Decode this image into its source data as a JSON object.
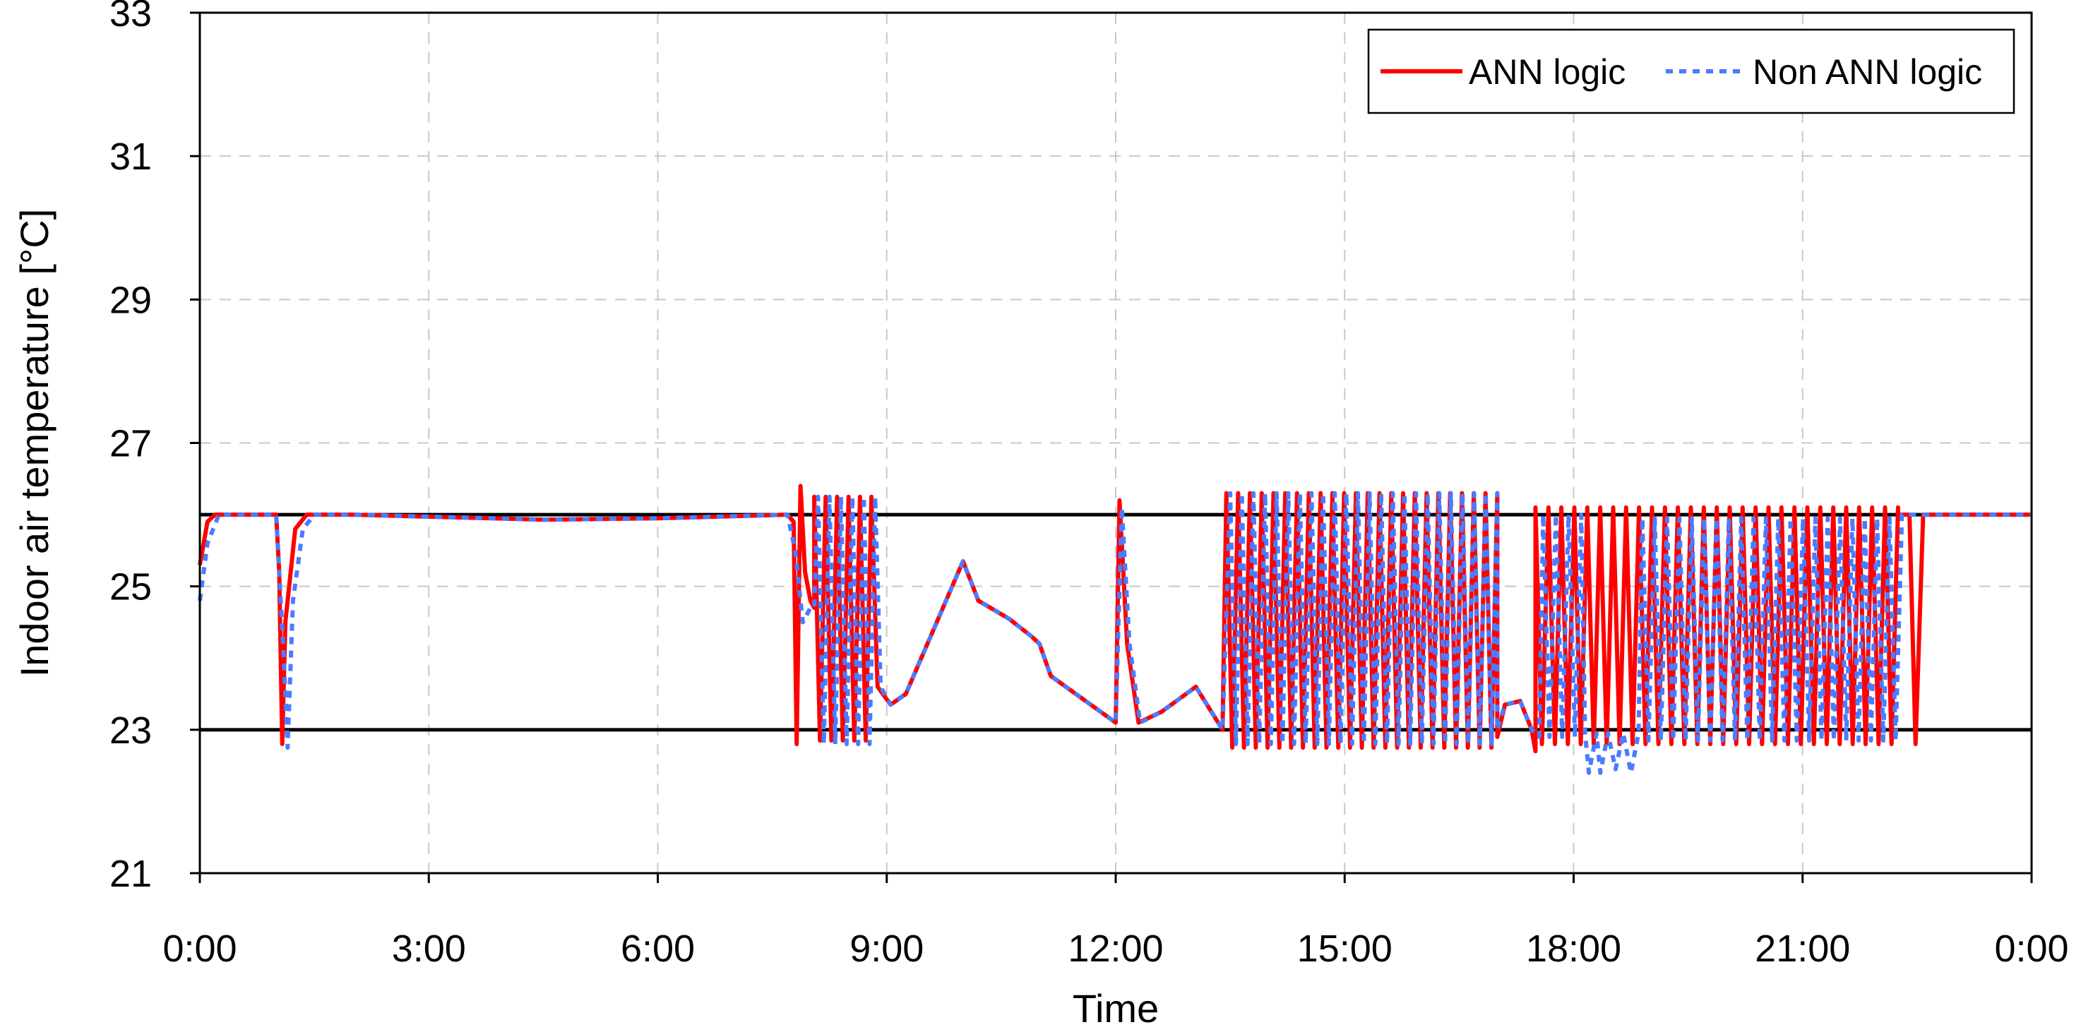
{
  "chart_data": {
    "type": "line",
    "title": "",
    "xlabel": "Time",
    "ylabel": "Indoor air temperature [°C]",
    "x_unit": "hours of day",
    "xlim": [
      0,
      24
    ],
    "ylim": [
      21,
      33
    ],
    "x_ticks": [
      0,
      3,
      6,
      9,
      12,
      15,
      18,
      21,
      24
    ],
    "x_tick_labels": [
      "0:00",
      "3:00",
      "6:00",
      "9:00",
      "12:00",
      "15:00",
      "18:00",
      "21:00",
      "0:00"
    ],
    "y_ticks": [
      21,
      23,
      25,
      27,
      29,
      31,
      33
    ],
    "y_tick_labels": [
      "21",
      "23",
      "25",
      "27",
      "29",
      "31",
      "33"
    ],
    "grid": true,
    "legend_position": "top-right",
    "reference_lines": [
      {
        "y": 26,
        "color": "#000000"
      },
      {
        "y": 23,
        "color": "#000000"
      }
    ],
    "series": [
      {
        "name": "ANN logic",
        "color": "#ff0000",
        "style": "solid",
        "segments": [
          {
            "type": "points",
            "points": [
              [
                0,
                25.3
              ],
              [
                0.1,
                25.9
              ],
              [
                0.2,
                26
              ],
              [
                1,
                26
              ],
              [
                1.04,
                25.2
              ],
              [
                1.08,
                22.8
              ],
              [
                1.12,
                24.5
              ],
              [
                1.25,
                25.8
              ],
              [
                1.4,
                26
              ],
              [
                2,
                26
              ],
              [
                4.5,
                25.93
              ],
              [
                6,
                25.95
              ],
              [
                7.7,
                26
              ],
              [
                7.78,
                25.9
              ],
              [
                7.82,
                22.8
              ],
              [
                7.87,
                26.4
              ],
              [
                7.93,
                25.2
              ],
              [
                8.0,
                24.8
              ],
              [
                8.05,
                24.7
              ]
            ]
          },
          {
            "type": "osc",
            "start": 8.05,
            "end": 8.8,
            "cycles": 5,
            "high": 26.25,
            "low": 22.85
          },
          {
            "type": "points",
            "points": [
              [
                8.8,
                26.2
              ],
              [
                8.88,
                23.6
              ],
              [
                9.05,
                23.35
              ],
              [
                9.25,
                23.5
              ],
              [
                10,
                25.35
              ],
              [
                10.2,
                24.8
              ],
              [
                10.6,
                24.55
              ],
              [
                10.9,
                24.3
              ],
              [
                11.0,
                24.2
              ],
              [
                11.15,
                23.75
              ],
              [
                12.0,
                23.1
              ],
              [
                12.05,
                26.2
              ],
              [
                12.15,
                24.2
              ],
              [
                12.3,
                23.1
              ],
              [
                12.6,
                23.25
              ],
              [
                13.05,
                23.6
              ],
              [
                13.4,
                23.0
              ]
            ]
          },
          {
            "type": "osc",
            "start": 13.45,
            "end": 17.0,
            "cycles": 23,
            "high": 26.3,
            "low": 22.75
          },
          {
            "type": "points",
            "points": [
              [
                17.0,
                22.9
              ],
              [
                17.1,
                23.35
              ],
              [
                17.3,
                23.4
              ],
              [
                17.45,
                23.0
              ],
              [
                17.5,
                22.7
              ]
            ]
          },
          {
            "type": "osc",
            "start": 17.5,
            "end": 22.25,
            "cycles": 28,
            "high": 26.1,
            "low": 22.8
          },
          {
            "type": "points",
            "points": [
              [
                22.25,
                26.0
              ],
              [
                22.4,
                26.0
              ],
              [
                22.48,
                22.8
              ],
              [
                22.58,
                26.0
              ],
              [
                22.8,
                26.0
              ],
              [
                24,
                26.0
              ]
            ]
          }
        ]
      },
      {
        "name": "Non ANN logic",
        "color": "#4a7cff",
        "style": "dotted",
        "segments": [
          {
            "type": "points",
            "points": [
              [
                0,
                24.8
              ],
              [
                0.1,
                25.6
              ],
              [
                0.25,
                26
              ],
              [
                1,
                26
              ],
              [
                1.1,
                24.0
              ],
              [
                1.15,
                22.75
              ],
              [
                1.22,
                24.8
              ],
              [
                1.35,
                25.8
              ],
              [
                1.5,
                26
              ],
              [
                2,
                26
              ],
              [
                4.5,
                25.93
              ],
              [
                6,
                25.95
              ],
              [
                7.7,
                26
              ],
              [
                7.8,
                25.5
              ],
              [
                7.9,
                24.5
              ],
              [
                8.0,
                24.7
              ],
              [
                8.05,
                24.7
              ]
            ]
          },
          {
            "type": "osc",
            "start": 8.1,
            "end": 8.85,
            "cycles": 5,
            "high": 26.25,
            "low": 22.8
          },
          {
            "type": "points",
            "points": [
              [
                8.85,
                26.2
              ],
              [
                8.92,
                23.6
              ],
              [
                9.05,
                23.35
              ],
              [
                9.25,
                23.5
              ],
              [
                10,
                25.35
              ],
              [
                10.2,
                24.8
              ],
              [
                10.6,
                24.55
              ],
              [
                10.9,
                24.3
              ],
              [
                11.0,
                24.2
              ],
              [
                11.15,
                23.75
              ],
              [
                12.0,
                23.1
              ],
              [
                12.08,
                26.1
              ],
              [
                12.18,
                24.2
              ],
              [
                12.32,
                23.1
              ],
              [
                12.6,
                23.25
              ],
              [
                13.05,
                23.6
              ],
              [
                13.4,
                23.0
              ]
            ]
          },
          {
            "type": "osc",
            "start": 13.5,
            "end": 17.0,
            "cycles": 23,
            "high": 26.3,
            "low": 22.8
          },
          {
            "type": "points",
            "points": [
              [
                17.0,
                23.0
              ],
              [
                17.1,
                23.35
              ],
              [
                17.3,
                23.4
              ],
              [
                17.45,
                23.0
              ],
              [
                17.55,
                22.9
              ]
            ]
          },
          {
            "type": "osc",
            "start": 17.6,
            "end": 18.1,
            "cycles": 3,
            "high": 26.0,
            "low": 22.9
          },
          {
            "type": "points",
            "points": [
              [
                18.15,
                22.95
              ],
              [
                18.2,
                22.4
              ],
              [
                18.3,
                22.95
              ],
              [
                18.35,
                22.4
              ],
              [
                18.45,
                22.95
              ],
              [
                18.55,
                22.45
              ],
              [
                18.65,
                22.95
              ],
              [
                18.75,
                22.4
              ],
              [
                18.85,
                22.95
              ]
            ]
          },
          {
            "type": "osc",
            "start": 18.9,
            "end": 22.3,
            "cycles": 21,
            "high": 25.95,
            "low": 22.85
          },
          {
            "type": "points",
            "points": [
              [
                22.3,
                26.0
              ],
              [
                24,
                26.0
              ]
            ]
          }
        ]
      }
    ]
  }
}
